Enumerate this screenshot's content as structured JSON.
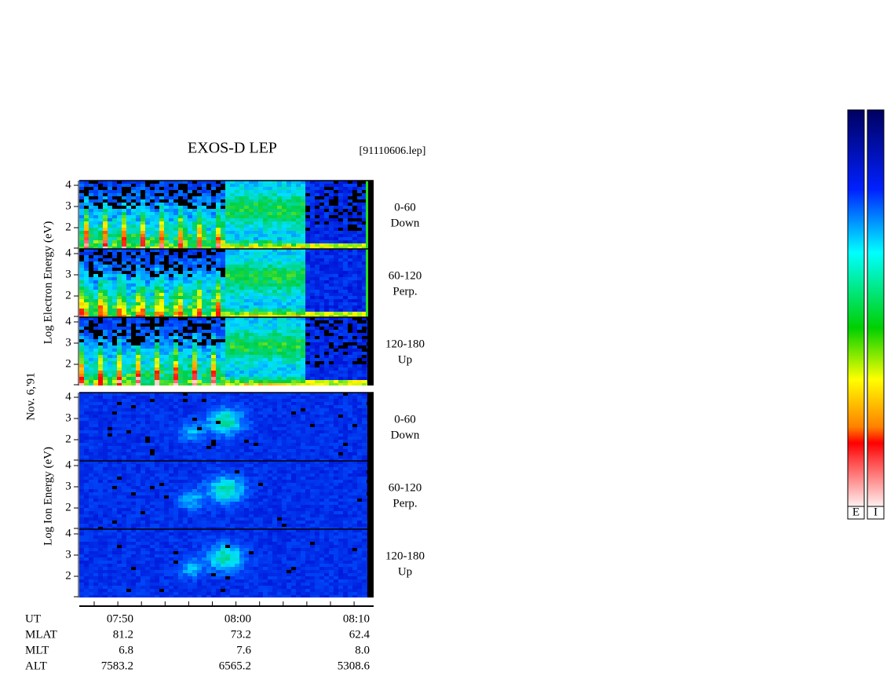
{
  "header": {
    "title": "EXOS-D LEP",
    "file": "[91110606.lep]"
  },
  "date": "Nov. 6,'91",
  "electron": {
    "axis_label": "Log Electron Energy (eV)",
    "panels": [
      {
        "ticks": [
          4,
          3,
          2
        ],
        "angle": "0-60",
        "direction": "Down"
      },
      {
        "ticks": [
          4,
          3,
          2
        ],
        "angle": "60-120",
        "direction": "Perp."
      },
      {
        "ticks": [
          4,
          3,
          2
        ],
        "angle": "120-180",
        "direction": "Up"
      }
    ]
  },
  "ion": {
    "axis_label": "Log Ion Energy (eV)",
    "panels": [
      {
        "ticks": [
          4,
          3,
          2
        ],
        "angle": "0-60",
        "direction": "Down"
      },
      {
        "ticks": [
          4,
          3,
          2
        ],
        "angle": "60-120",
        "direction": "Perp."
      },
      {
        "ticks": [
          4,
          3,
          2
        ],
        "angle": "120-180",
        "direction": "Up"
      }
    ]
  },
  "time_axis": {
    "rows": [
      {
        "label": "UT",
        "values": [
          "07:50",
          "08:00",
          "08:10"
        ]
      },
      {
        "label": "MLAT",
        "values": [
          "81.2",
          "73.2",
          "62.4"
        ]
      },
      {
        "label": "MLT",
        "values": [
          "6.8",
          "7.6",
          "8.0"
        ]
      },
      {
        "label": "ALT",
        "values": [
          "7583.2",
          "6565.2",
          "5308.6"
        ]
      }
    ]
  },
  "colorbar": {
    "labels": [
      "E",
      "I"
    ]
  }
}
